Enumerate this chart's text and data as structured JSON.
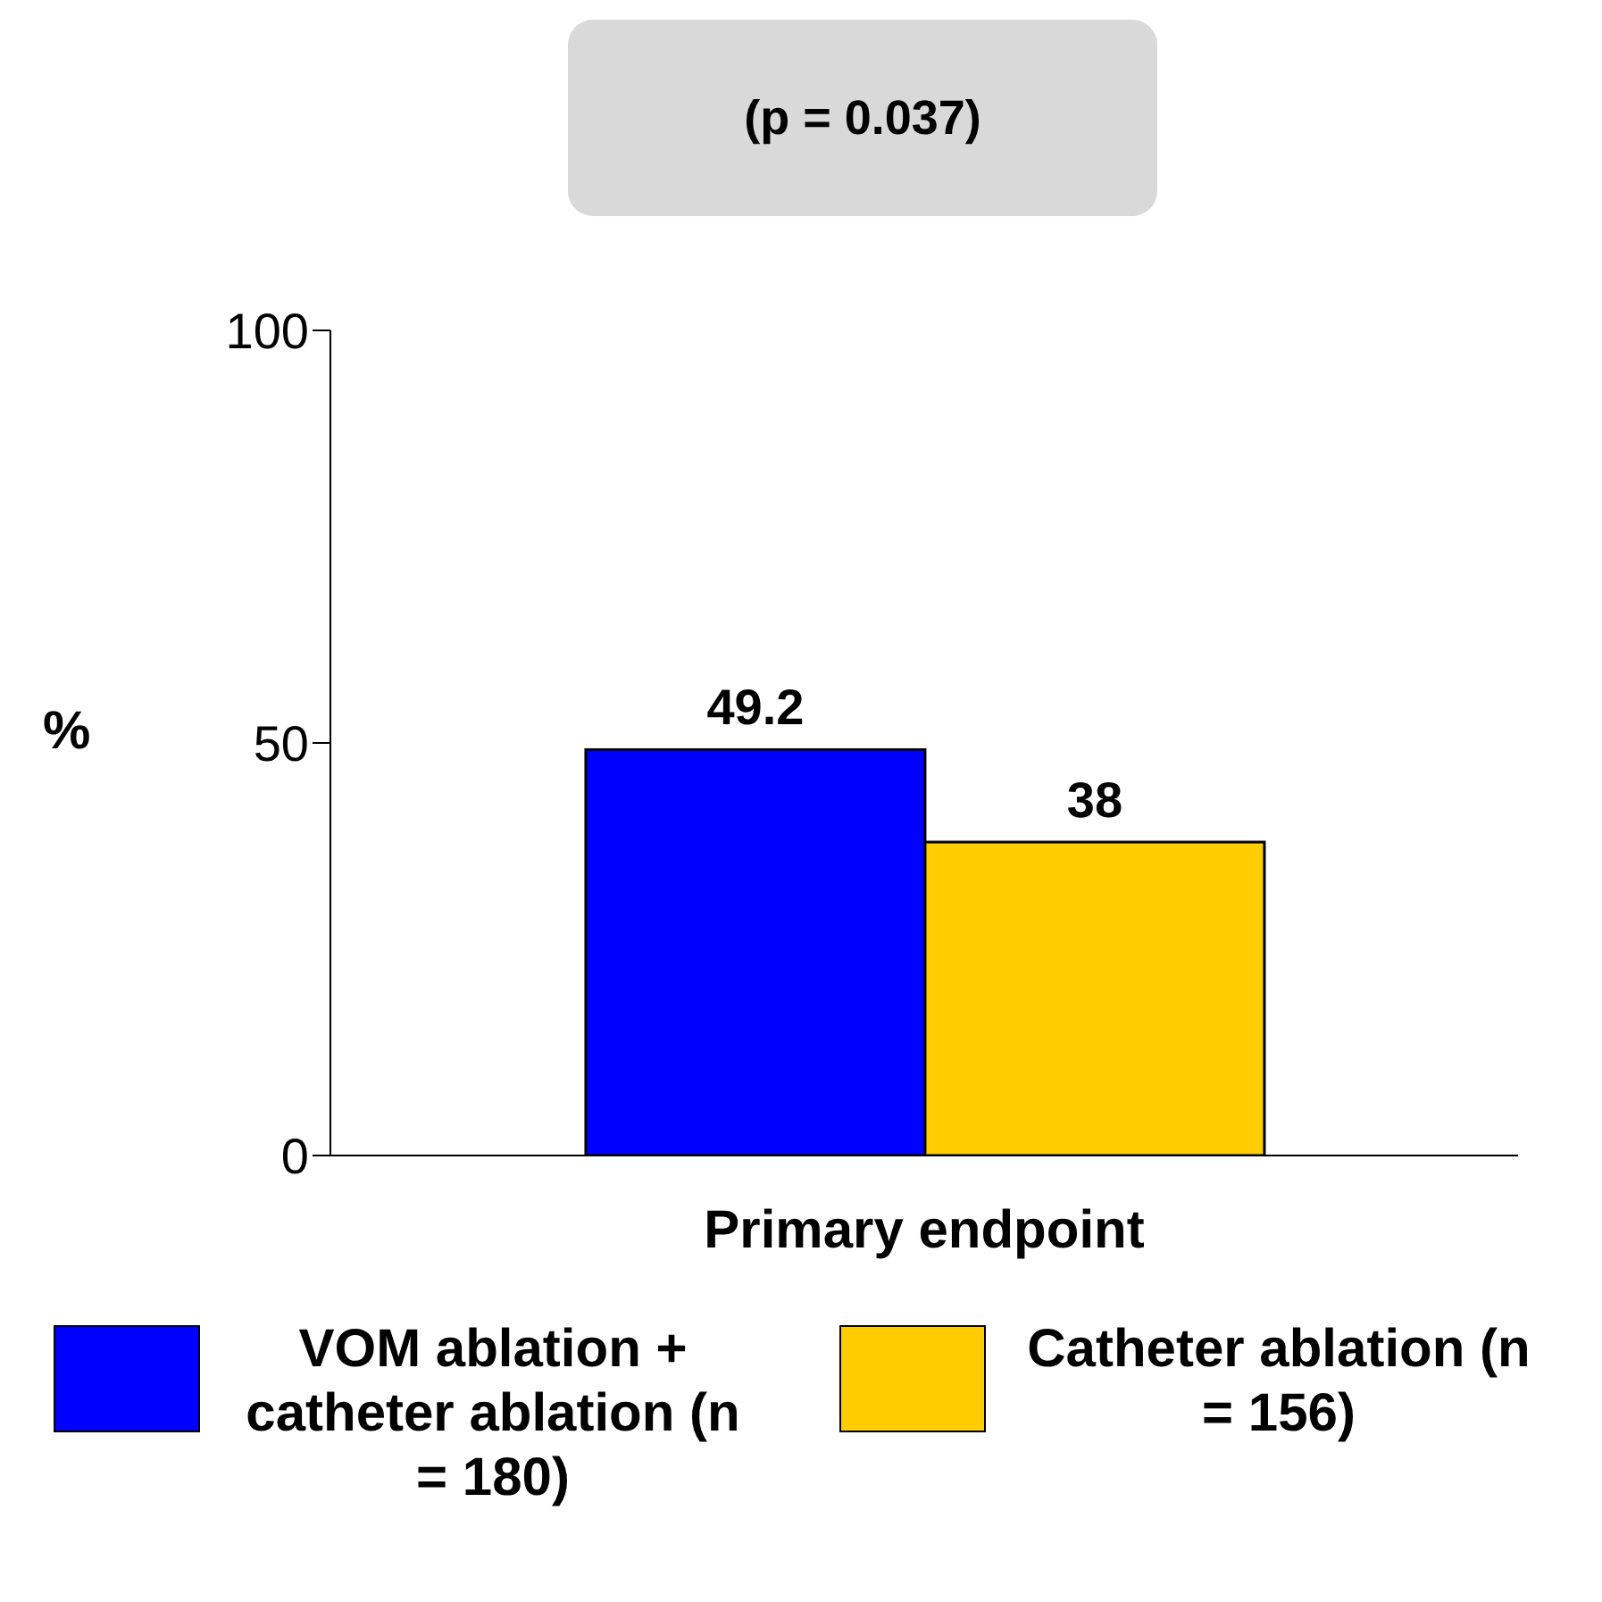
{
  "chart_data": {
    "type": "bar",
    "categories": [
      "Primary endpoint"
    ],
    "series": [
      {
        "name": "VOM ablation + catheter ablation (n = 180)",
        "color": "#0000ff",
        "values": [
          49.2
        ]
      },
      {
        "name": "Catheter ablation (n = 156)",
        "color": "#ffcc00",
        "values": [
          38
        ]
      }
    ],
    "ylabel": "%",
    "ylim": [
      0,
      100
    ],
    "yticks": [
      0,
      50,
      100
    ],
    "grid": false,
    "legend": "bottom",
    "data_labels": true,
    "annotations": [
      "(p = 0.037)"
    ]
  }
}
